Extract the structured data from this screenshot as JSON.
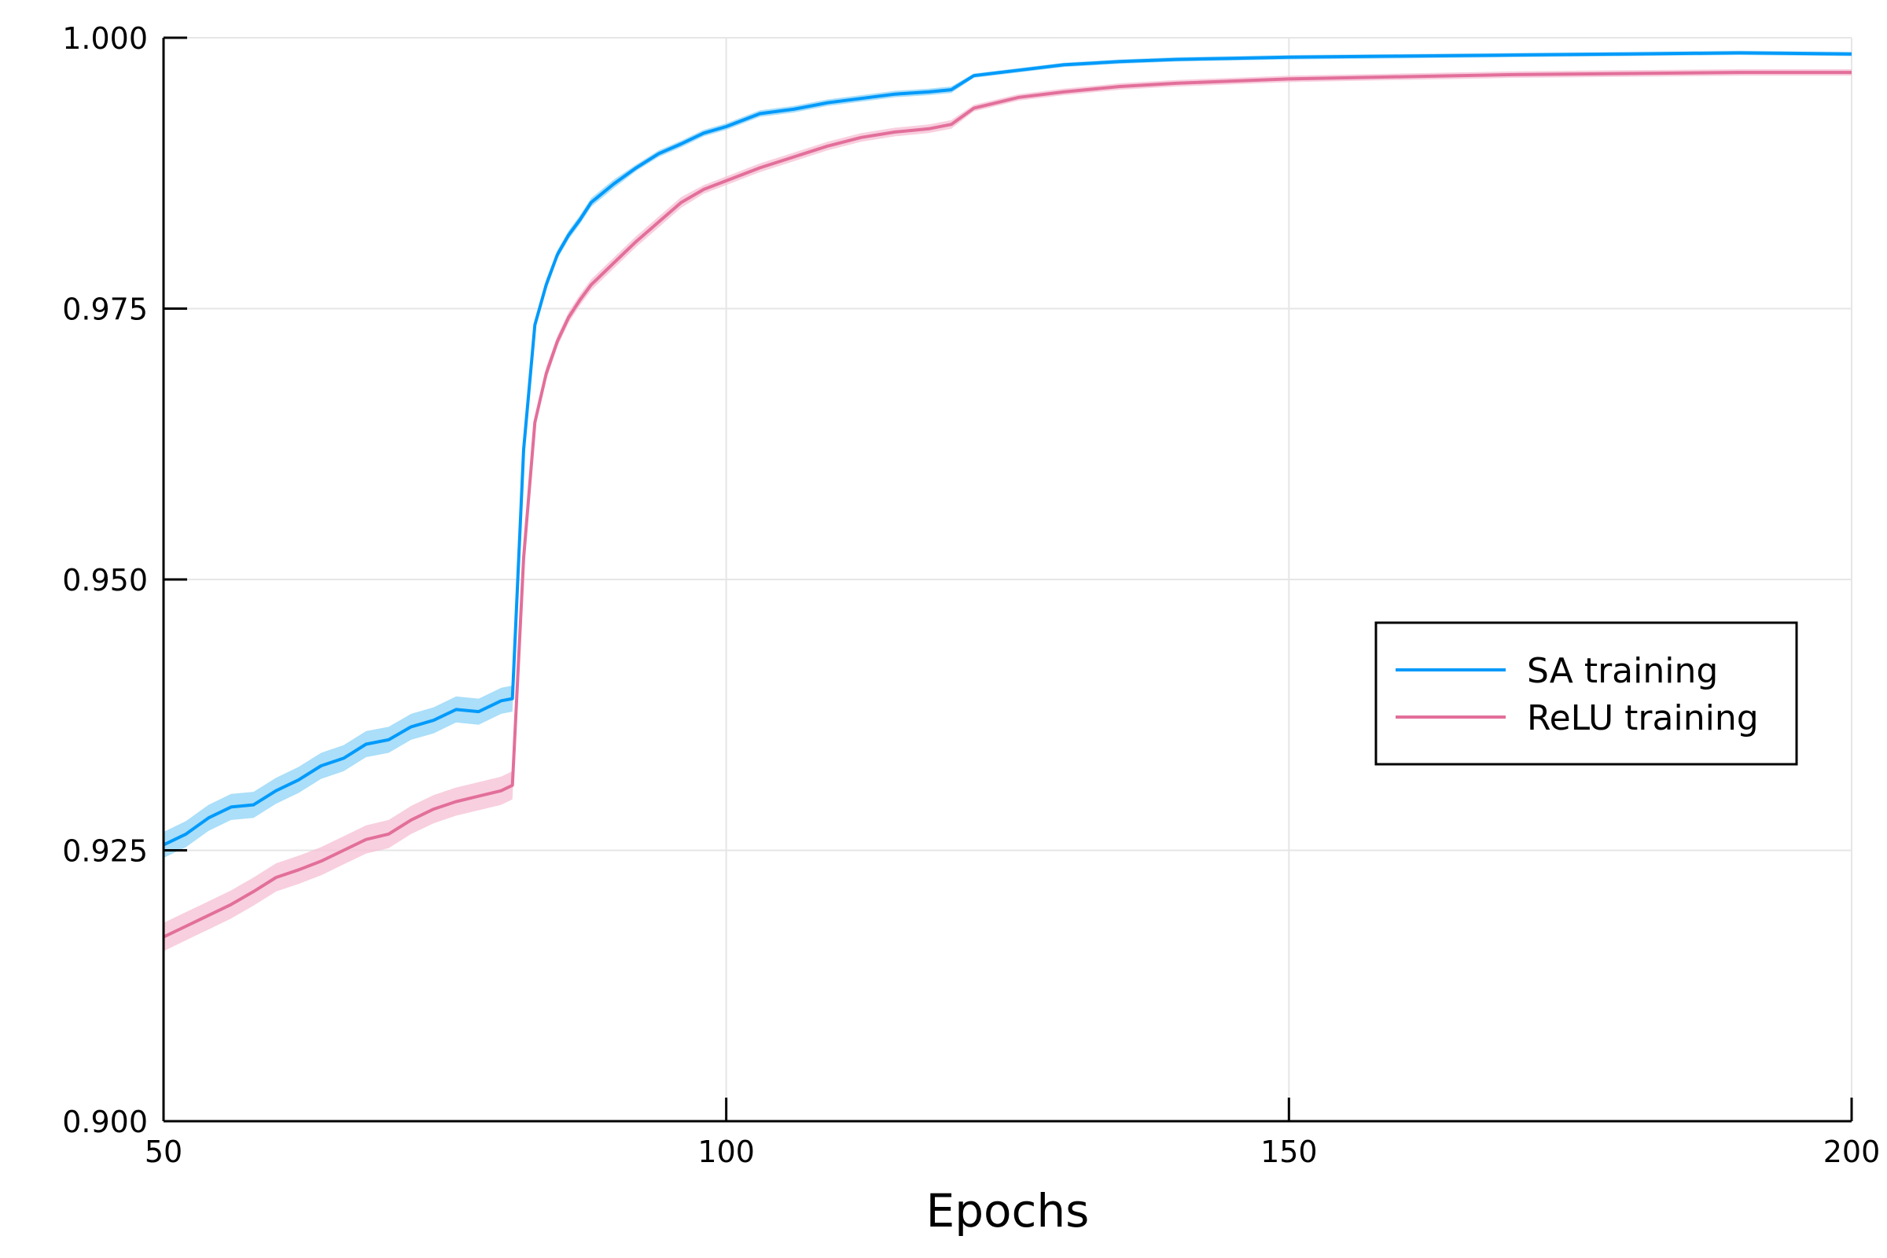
{
  "chart_data": {
    "type": "line",
    "title": "",
    "xlabel": "Epochs",
    "ylabel": "",
    "xlim": [
      50,
      200
    ],
    "ylim": [
      0.9,
      1.0
    ],
    "xticks": [
      50,
      100,
      150,
      200
    ],
    "xtick_labels": [
      "50",
      "100",
      "150",
      "200"
    ],
    "yticks": [
      0.9,
      0.925,
      0.95,
      0.975,
      1.0
    ],
    "ytick_labels": [
      "0.900",
      "0.925",
      "0.950",
      "0.975",
      "1.000"
    ],
    "grid": true,
    "legend_position": "right",
    "x": [
      50,
      52,
      54,
      56,
      58,
      60,
      62,
      64,
      66,
      68,
      70,
      72,
      74,
      76,
      78,
      80,
      81,
      82,
      83,
      84,
      85,
      86,
      87,
      88,
      90,
      92,
      94,
      96,
      98,
      100,
      103,
      106,
      109,
      112,
      115,
      118,
      120,
      122,
      126,
      130,
      135,
      140,
      145,
      150,
      160,
      170,
      180,
      190,
      200
    ],
    "series": [
      {
        "name": "SA training",
        "color": "#009AFA",
        "band_color": "#8DD3F7",
        "values": [
          0.9255,
          0.9265,
          0.928,
          0.929,
          0.9292,
          0.9305,
          0.9315,
          0.9328,
          0.9335,
          0.9348,
          0.9352,
          0.9364,
          0.937,
          0.938,
          0.9378,
          0.9388,
          0.939,
          0.962,
          0.9735,
          0.9772,
          0.98,
          0.9818,
          0.9832,
          0.9848,
          0.9865,
          0.988,
          0.9893,
          0.9902,
          0.9912,
          0.9918,
          0.993,
          0.9934,
          0.994,
          0.9944,
          0.9948,
          0.995,
          0.9952,
          0.9965,
          0.997,
          0.9975,
          0.9978,
          0.998,
          0.9981,
          0.9982,
          0.9983,
          0.9984,
          0.9985,
          0.9986,
          0.9985
        ],
        "band": [
          0.0012,
          0.0012,
          0.0012,
          0.0012,
          0.0012,
          0.0012,
          0.0012,
          0.0012,
          0.0012,
          0.0012,
          0.0012,
          0.0012,
          0.0012,
          0.0012,
          0.0012,
          0.0012,
          0.0012,
          0.0008,
          0.0005,
          0.0005,
          0.0004,
          0.0004,
          0.0004,
          0.0004,
          0.0004,
          0.0003,
          0.0003,
          0.0003,
          0.0003,
          0.0003,
          0.0003,
          0.0003,
          0.0003,
          0.0003,
          0.0003,
          0.0003,
          0.0003,
          0.0002,
          0.0002,
          0.0002,
          0.0002,
          0.0002,
          0.0002,
          0.0002,
          0.0002,
          0.0002,
          0.0002,
          0.0002,
          0.0002
        ]
      },
      {
        "name": "ReLU training",
        "color": "#E26F9A",
        "band_color": "#F5BFD3",
        "values": [
          0.917,
          0.918,
          0.919,
          0.92,
          0.9212,
          0.9225,
          0.9232,
          0.924,
          0.925,
          0.926,
          0.9265,
          0.9278,
          0.9288,
          0.9295,
          0.93,
          0.9305,
          0.931,
          0.952,
          0.9645,
          0.969,
          0.972,
          0.9742,
          0.9758,
          0.9772,
          0.9792,
          0.9812,
          0.983,
          0.9848,
          0.986,
          0.9868,
          0.988,
          0.989,
          0.99,
          0.9908,
          0.9913,
          0.9916,
          0.992,
          0.9935,
          0.9945,
          0.995,
          0.9955,
          0.9958,
          0.996,
          0.9962,
          0.9964,
          0.9966,
          0.9967,
          0.9968,
          0.9968
        ],
        "band": [
          0.0013,
          0.0013,
          0.0013,
          0.0013,
          0.0013,
          0.0013,
          0.0013,
          0.0013,
          0.0013,
          0.0013,
          0.0013,
          0.0013,
          0.0013,
          0.0013,
          0.0013,
          0.0013,
          0.0013,
          0.0008,
          0.0006,
          0.0006,
          0.0005,
          0.0005,
          0.0005,
          0.0005,
          0.0005,
          0.0005,
          0.0005,
          0.0005,
          0.0004,
          0.0004,
          0.0004,
          0.0004,
          0.0004,
          0.0004,
          0.0004,
          0.0004,
          0.0004,
          0.0003,
          0.0003,
          0.0003,
          0.0003,
          0.0003,
          0.0003,
          0.0003,
          0.0003,
          0.0003,
          0.0003,
          0.0003,
          0.0003
        ]
      }
    ]
  }
}
